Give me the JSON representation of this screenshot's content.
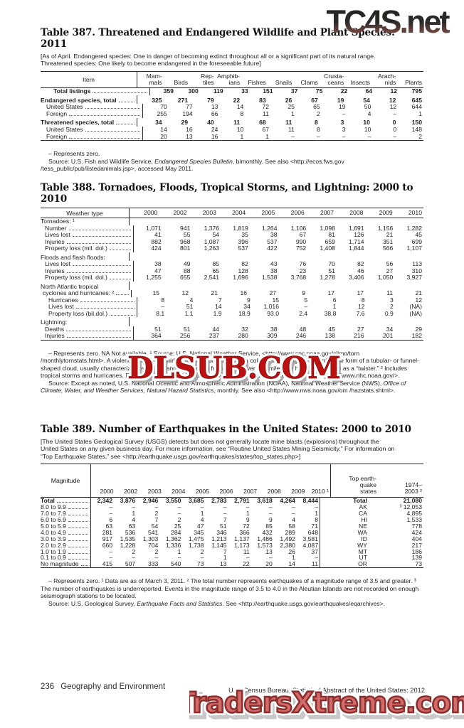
{
  "watermarks": {
    "top": "TC4S.net",
    "middle": "DLSUB.COM",
    "bottom": "TradersXtreme.com"
  },
  "footer": {
    "page_number": "236",
    "section_title": "Geography and Environment",
    "source_line": "U.S. Census Bureau, Statistical Abstract of the United States: 2012"
  },
  "table387": {
    "title": "Table 387. Threatened and Endangered Wildlife and Plant Species: 2011",
    "note": "[As of April. Endangered species: One in danger of becoming extinct  throughout all or a significant part of its natural range.\nThreatened species: One likely to become endangered in the foreseeable future]",
    "stub_header": "Item",
    "col_headers": [
      "Mam-\nmals",
      "Birds",
      "Rep-\ntiles",
      "Amphib-\nians",
      "Fishes",
      "Snails",
      "Clams",
      "Crusta-\nceans",
      "Insects",
      "Arach-\nnids",
      "Plants"
    ],
    "rows": [
      {
        "label": "Total listings",
        "b": 1,
        "ind": 18,
        "values": [
          "359",
          "300",
          "119",
          "33",
          "151",
          "37",
          "75",
          "22",
          "64",
          "12",
          "795"
        ]
      },
      {
        "sp": 1
      },
      {
        "label": "Endangered species, total",
        "b": 1,
        "values": [
          "325",
          "271",
          "79",
          "22",
          "83",
          "26",
          "67",
          "19",
          "54",
          "12",
          "645"
        ]
      },
      {
        "label": "United States",
        "ind": 8,
        "values": [
          "70",
          "77",
          "13",
          "14",
          "72",
          "25",
          "65",
          "19",
          "50",
          "12",
          "644"
        ]
      },
      {
        "label": "Foreign",
        "ind": 8,
        "values": [
          "255",
          "194",
          "66",
          "8",
          "11",
          "1",
          "2",
          "–",
          "4",
          "–",
          "1"
        ]
      },
      {
        "sp": 1
      },
      {
        "label": "Threatened species, total",
        "b": 1,
        "values": [
          "34",
          "29",
          "40",
          "11",
          "68",
          "11",
          "8",
          "3",
          "10",
          "0",
          "150"
        ]
      },
      {
        "label": "United States",
        "ind": 8,
        "values": [
          "14",
          "16",
          "24",
          "10",
          "67",
          "11",
          "8",
          "3",
          "10",
          "0",
          "148"
        ]
      },
      {
        "label": "Foreign",
        "ind": 8,
        "values": [
          "20",
          "13",
          "16",
          "1",
          "1",
          "–",
          "–",
          "–",
          "–",
          "–",
          "2"
        ]
      }
    ],
    "fn_zero": "– Represents zero.",
    "src_prefix": "Source: U.S. Fish and Wildlife Service, ",
    "src_italic": "Endangered Species Bulletin",
    "src_suffix": ", bimonthly. See also <http://ecos.fws.gov /tess_public/pub/listedanimals.jsp>, accessed May 2011."
  },
  "table388": {
    "title": "Table 388. Tornadoes, Floods, Tropical Storms, and Lightning: 2000 to 2010",
    "stub_header": "Weather type",
    "col_headers": [
      "2000",
      "2002",
      "2003",
      "2004",
      "2005",
      "2006",
      "2007",
      "2008",
      "2009",
      "2010"
    ],
    "rows": [
      {
        "head": 1,
        "label": "Tornadoes: ¹"
      },
      {
        "label": "Number",
        "ind": 6,
        "values": [
          "1,071",
          "941",
          "1,376",
          "1,819",
          "1,264",
          "1,106",
          "1,098",
          "1,691",
          "1,156",
          "1,282"
        ]
      },
      {
        "label": "Lives lost",
        "ind": 6,
        "values": [
          "41",
          "55",
          "54",
          "35",
          "38",
          "67",
          "81",
          "126",
          "21",
          "45"
        ]
      },
      {
        "label": "Injuries",
        "ind": 6,
        "values": [
          "882",
          "968",
          "1,087",
          "396",
          "537",
          "990",
          "659",
          "1,714",
          "351",
          "699"
        ]
      },
      {
        "label": "Property loss (mil. dol.)",
        "ind": 6,
        "values": [
          "424",
          "801",
          "1,263",
          "537",
          "422",
          "752",
          "1,408",
          "1,844",
          "566",
          "1,107"
        ]
      },
      {
        "sp": 1
      },
      {
        "head": 1,
        "label": "Floods and flash floods:"
      },
      {
        "label": "Lives lost",
        "ind": 6,
        "values": [
          "38",
          "49",
          "85",
          "82",
          "43",
          "76",
          "70",
          "82",
          "56",
          "113"
        ]
      },
      {
        "label": "Injuries",
        "ind": 6,
        "values": [
          "47",
          "88",
          "65",
          "128",
          "38",
          "23",
          "51",
          "46",
          "27",
          "310"
        ]
      },
      {
        "label": "Property loss (mil. dol.)",
        "ind": 6,
        "values": [
          "1,255",
          "655",
          "2,541",
          "1,696",
          "1,538",
          "3,768",
          "1,278",
          "3,406",
          "1,050",
          "3,927"
        ]
      },
      {
        "sp": 1
      },
      {
        "head": 1,
        "label": "North Atlantic tropical"
      },
      {
        "label": "cyclones and hurricanes: ²",
        "ind": 3,
        "values": [
          "15",
          "12",
          "21",
          "16",
          "27",
          "9",
          "17",
          "17",
          "11",
          "21"
        ]
      },
      {
        "label": "Hurricanes",
        "ind": 11,
        "values": [
          "8",
          "4",
          "7",
          "9",
          "15",
          "5",
          "6",
          "8",
          "3",
          "12"
        ]
      },
      {
        "label": "Lives lost",
        "ind": 11,
        "values": [
          "–",
          "51",
          "14",
          "34",
          "1,016",
          "–",
          "1",
          "12",
          "2",
          "(NA)"
        ]
      },
      {
        "label": "Property loss (bil.dol.)",
        "ind": 11,
        "values": [
          "8.1",
          "1.1",
          "1.9",
          "18.9",
          "93.0",
          "2.4",
          "38.8",
          "7.6",
          "0.9",
          "(NA)"
        ]
      },
      {
        "sp": 1
      },
      {
        "head": 1,
        "label": "Lightning:"
      },
      {
        "label": "Deaths",
        "ind": 6,
        "values": [
          "51",
          "51",
          "44",
          "32",
          "38",
          "48",
          "45",
          "27",
          "34",
          "29"
        ]
      },
      {
        "label": "Injuries",
        "ind": 6,
        "values": [
          "364",
          "256",
          "237",
          "280",
          "309",
          "246",
          "138",
          "216",
          "201",
          "182"
        ]
      }
    ],
    "fn1": "– Represents zero. NA Not available. ¹ Source: U.S. National Weather Service, <http://www.spc.noaa.gov/climo/torn /monthlytornstats.html>. A violent destructive whirling wind accompanied by a column extending downward in the form of a tubular- or funnel-shaped cloud, usually characterized by winds ranging in speed from 100 to over 300 miles per hour. Also known as a “twister.” ² Includes tropical storms and hurricanes. For data on individual hurricanes, see National Hurrican Center (NHC) at <http://www.nhc.noaa.gov/>.",
    "src_prefix": "Source: Except as noted, U.S. National Oceanic and Atmospheric Administration (NOAA), National Weather Service (NWS), ",
    "src_italic": "Office of Climate, Water, and Weather Services, Natural Hazard Statistics",
    "src_suffix": ", monthly. See also <http://www.nws.noaa.gov/om /hazstats.shtml>."
  },
  "table389": {
    "title": "Table 389. Number of Earthquakes in the United States: 2000 to 2010",
    "note": "[The United States Geological Survey (USGS) detects but does not generally locate mine blasts (explosions) throughout the\nUnited States on any given business day. For more information, see “Routine United States Mining Seismicity.” For information on\n“Top Earthquake States,” see <http://earthquake.usgs.gov/earthquakes/states/top_states.php>]",
    "stub_header": "Magnitude",
    "col_headers": [
      "2000",
      "2002",
      "2003",
      "2004",
      "2005",
      "2006",
      "2007",
      "2008",
      "2009",
      "2010 ¹"
    ],
    "state_header": "Top earth-\nquake\nstates",
    "hist_header": "1974–\n2003 ²",
    "rows": [
      {
        "label": "Total",
        "b": 1,
        "values": [
          "2,342",
          "3,876",
          "2,946",
          "3,550",
          "3,685",
          "2,783",
          "2,791",
          "3,618",
          "4,264",
          "8,444"
        ],
        "state": "Total",
        "hist": "21,080"
      },
      {
        "label": "8.0 to 9.9",
        "values": [
          "–",
          "–",
          "–",
          "–",
          "–",
          "–",
          "–",
          "–",
          "–",
          "–"
        ],
        "state": "AK",
        "hist": "³ 12,053"
      },
      {
        "label": "7.0 to 7.9",
        "values": [
          "–",
          "1",
          "2",
          "–",
          "1",
          "–",
          "1",
          "–",
          "–",
          "1"
        ],
        "state": "CA",
        "hist": "4,895"
      },
      {
        "label": "6.0 to 6.9",
        "values": [
          "6",
          "4",
          "7",
          "2",
          "4",
          "7",
          "9",
          "9",
          "4",
          "8"
        ],
        "state": "HI",
        "hist": "1,533"
      },
      {
        "label": "5.0 to 5.9",
        "values": [
          "63",
          "63",
          "54",
          "25",
          "47",
          "51",
          "72",
          "85",
          "58",
          "71"
        ],
        "state": "NE",
        "hist": "778"
      },
      {
        "label": "4.0 to 4.9",
        "values": [
          "281",
          "536",
          "541",
          "284",
          "345",
          "346",
          "366",
          "432",
          "289",
          "648"
        ],
        "state": "WA",
        "hist": "424"
      },
      {
        "label": "3.0 to 3.9",
        "values": [
          "917",
          "1,535",
          "1,303",
          "1,362",
          "1,475",
          "1,213",
          "1,137",
          "1,486",
          "1,492",
          "3,581"
        ],
        "state": "ID",
        "hist": "404"
      },
      {
        "label": "2.0 to 2.9",
        "values": [
          "660",
          "1,228",
          "704",
          "1,336",
          "1,738",
          "1,145",
          "1,173",
          "1,573",
          "2,380",
          "4,087"
        ],
        "state": "WY",
        "hist": "217"
      },
      {
        "label": "1.0 to 1.9",
        "values": [
          "–",
          "2",
          "2",
          "1",
          "2",
          "7",
          "11",
          "13",
          "26",
          "37"
        ],
        "state": "MT",
        "hist": "186"
      },
      {
        "label": "0.1 to 0.9",
        "values": [
          "–",
          "–",
          "–",
          "–",
          "–",
          "1",
          "–",
          "–",
          "1",
          "–"
        ],
        "state": "UT",
        "hist": "139"
      },
      {
        "label": "No magnitude",
        "values": [
          "415",
          "507",
          "333",
          "540",
          "73",
          "13",
          "22",
          "20",
          "14",
          "11"
        ],
        "state": "OR",
        "hist": "73"
      }
    ],
    "fn1": "– Represents zero. ¹ Data are as of March 3, 2011. ² The total number represents earthquakes of a magnitude range of 3.5 and greater. ³ The number of earthquakes is underreported. Events in the magnitude range of 3.5 to 4.0 in the Aleutian Islands are not recorded on enough seismograph stations to be located.",
    "src_prefix": "Source: U.S. Geological Survey, ",
    "src_italic": "Earthquake Facts and Statistics",
    "src_suffix": ". See <http://earthquake.usgs.gov/earthquakes/eqarchives>."
  }
}
